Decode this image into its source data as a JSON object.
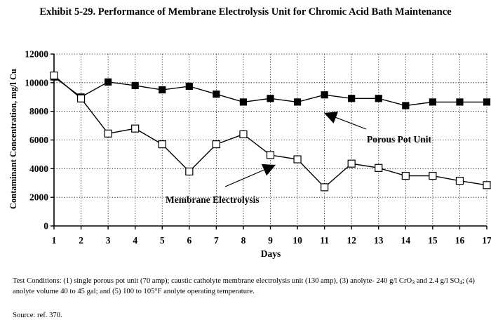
{
  "title": "Exhibit 5-29. Performance of Membrane Electrolysis Unit for Chromic Acid Bath Maintenance",
  "chart_data": {
    "type": "line",
    "xlabel": "Days",
    "ylabel": "Contaminant Concentration, mg/l Cu",
    "x": [
      1,
      2,
      3,
      4,
      5,
      6,
      7,
      8,
      9,
      10,
      11,
      12,
      13,
      14,
      15,
      16,
      17
    ],
    "xlim": [
      1,
      17
    ],
    "ylim": [
      0,
      12000
    ],
    "yticks": [
      0,
      2000,
      4000,
      6000,
      8000,
      10000,
      12000
    ],
    "grid": true,
    "series": [
      {
        "name": "Porous Pot Unit",
        "marker": "filled-square",
        "values": [
          10400,
          9000,
          10050,
          9800,
          9500,
          9750,
          9200,
          8650,
          8900,
          8650,
          9150,
          8900,
          8900,
          8400,
          8650,
          8650,
          8650
        ]
      },
      {
        "name": "Membrane Electrolysis",
        "marker": "open-square",
        "values": [
          10500,
          8900,
          6450,
          6800,
          5700,
          3800,
          5700,
          6400,
          4950,
          4650,
          2700,
          4350,
          4050,
          3500,
          3500,
          3150,
          2850
        ]
      }
    ],
    "annotations": [
      {
        "text": "Porous Pot Unit",
        "series": 0,
        "x": 11.6,
        "y": 8000
      },
      {
        "text": "Membrane Electrolysis",
        "series": 1,
        "x": 9.3,
        "y": 3950
      }
    ]
  },
  "conditions": {
    "p1": "Test Conditions: (1) single porous pot unit (70 amp); caustic catholyte membrane electrolysis unit (130 amp), (3) anolyte- 240 g/l CrO",
    "sub1": "3",
    "p2": " and 2.4 g/l SO",
    "sub2": "4",
    "p3": "; (4) anolyte volume 40 to 45 gal; and (5) 100 to 105°F anolyte operating temperature."
  },
  "source": "Source:  ref. 370."
}
